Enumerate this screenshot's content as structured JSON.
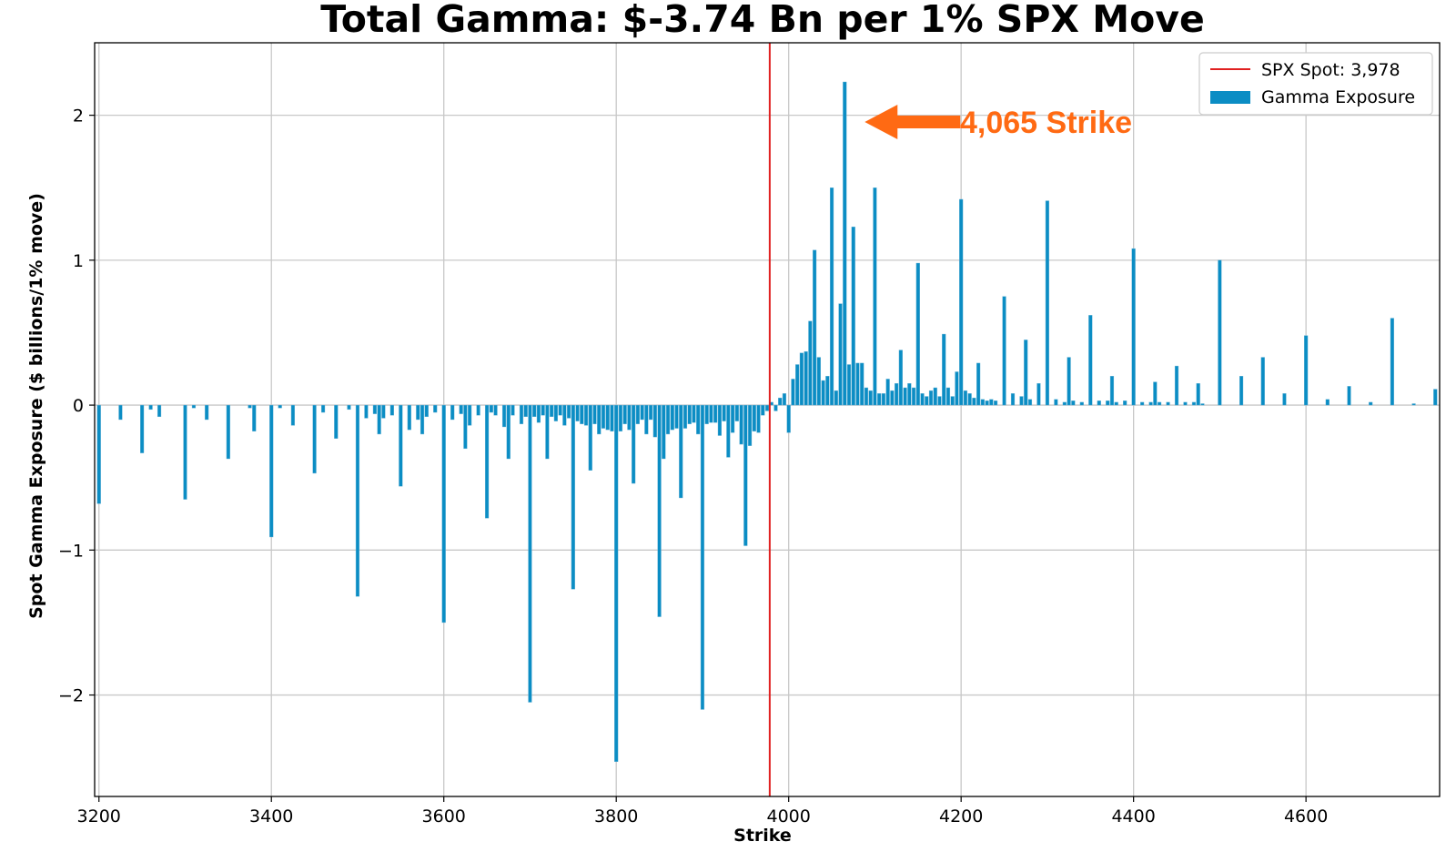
{
  "chart_data": {
    "type": "bar",
    "title": "Total Gamma: $-3.74 Bn per 1% SPX Move",
    "xlabel": "Strike",
    "ylabel": "Spot Gamma Exposure ($ billions/1% move)",
    "xlim": [
      3195,
      4755
    ],
    "ylim": [
      -2.7,
      2.5
    ],
    "grid": true,
    "legend_position": "top-right",
    "x_ticks": [
      3200,
      3400,
      3600,
      3800,
      4000,
      4200,
      4400,
      4600
    ],
    "x_tick_labels": [
      "3200",
      "3400",
      "3600",
      "3800",
      "4000",
      "4200",
      "4400",
      "4600"
    ],
    "y_ticks": [
      -2,
      -1,
      0,
      1,
      2
    ],
    "y_tick_labels": [
      "−2",
      "−1",
      "0",
      "1",
      "2"
    ],
    "bar_color": "#0b8dc4",
    "bar_width": 4,
    "series": [
      {
        "name": "Gamma Exposure",
        "x": [
          3200,
          3225,
          3250,
          3260,
          3270,
          3300,
          3310,
          3325,
          3350,
          3375,
          3380,
          3400,
          3410,
          3425,
          3450,
          3460,
          3475,
          3490,
          3500,
          3510,
          3520,
          3525,
          3530,
          3540,
          3550,
          3560,
          3570,
          3575,
          3580,
          3590,
          3600,
          3610,
          3620,
          3625,
          3630,
          3640,
          3650,
          3655,
          3660,
          3670,
          3675,
          3680,
          3690,
          3695,
          3700,
          3705,
          3710,
          3715,
          3720,
          3725,
          3730,
          3735,
          3740,
          3745,
          3750,
          3755,
          3760,
          3765,
          3770,
          3775,
          3780,
          3785,
          3790,
          3795,
          3800,
          3805,
          3810,
          3815,
          3820,
          3825,
          3830,
          3835,
          3840,
          3845,
          3850,
          3855,
          3860,
          3865,
          3870,
          3875,
          3880,
          3885,
          3890,
          3895,
          3900,
          3905,
          3910,
          3915,
          3920,
          3925,
          3930,
          3935,
          3940,
          3945,
          3950,
          3955,
          3960,
          3965,
          3970,
          3975,
          3980,
          3985,
          3990,
          3995,
          4000,
          4005,
          4010,
          4015,
          4020,
          4025,
          4030,
          4035,
          4040,
          4045,
          4050,
          4055,
          4060,
          4065,
          4070,
          4075,
          4080,
          4085,
          4090,
          4095,
          4100,
          4105,
          4110,
          4115,
          4120,
          4125,
          4130,
          4135,
          4140,
          4145,
          4150,
          4155,
          4160,
          4165,
          4170,
          4175,
          4180,
          4185,
          4190,
          4195,
          4200,
          4205,
          4210,
          4215,
          4220,
          4225,
          4230,
          4235,
          4240,
          4250,
          4260,
          4270,
          4275,
          4280,
          4290,
          4300,
          4310,
          4320,
          4325,
          4330,
          4340,
          4350,
          4360,
          4370,
          4375,
          4380,
          4390,
          4400,
          4410,
          4420,
          4425,
          4430,
          4440,
          4450,
          4460,
          4470,
          4475,
          4480,
          4500,
          4525,
          4550,
          4575,
          4600,
          4625,
          4650,
          4675,
          4700,
          4725,
          4750
        ],
        "values": [
          -0.68,
          -0.1,
          -0.33,
          -0.03,
          -0.08,
          -0.65,
          -0.02,
          -0.1,
          -0.37,
          -0.02,
          -0.18,
          -0.91,
          -0.02,
          -0.14,
          -0.47,
          -0.05,
          -0.23,
          -0.03,
          -1.32,
          -0.09,
          -0.06,
          -0.2,
          -0.09,
          -0.07,
          -0.56,
          -0.17,
          -0.1,
          -0.2,
          -0.08,
          -0.05,
          -1.5,
          -0.1,
          -0.06,
          -0.3,
          -0.14,
          -0.07,
          -0.78,
          -0.05,
          -0.07,
          -0.15,
          -0.37,
          -0.07,
          -0.13,
          -0.08,
          -2.05,
          -0.08,
          -0.12,
          -0.07,
          -0.37,
          -0.08,
          -0.11,
          -0.07,
          -0.14,
          -0.09,
          -1.27,
          -0.11,
          -0.13,
          -0.14,
          -0.45,
          -0.13,
          -0.2,
          -0.16,
          -0.17,
          -0.18,
          -2.46,
          -0.18,
          -0.13,
          -0.17,
          -0.54,
          -0.13,
          -0.1,
          -0.2,
          -0.1,
          -0.22,
          -1.46,
          -0.37,
          -0.2,
          -0.17,
          -0.16,
          -0.64,
          -0.16,
          -0.13,
          -0.12,
          -0.2,
          -2.1,
          -0.13,
          -0.12,
          -0.12,
          -0.21,
          -0.11,
          -0.36,
          -0.19,
          -0.11,
          -0.27,
          -0.97,
          -0.28,
          -0.18,
          -0.19,
          -0.07,
          -0.04,
          0.02,
          -0.04,
          0.05,
          0.08,
          -0.19,
          0.18,
          0.28,
          0.36,
          0.37,
          0.58,
          1.07,
          0.33,
          0.17,
          0.2,
          1.5,
          0.1,
          0.7,
          2.23,
          0.28,
          1.23,
          0.29,
          0.29,
          0.12,
          0.1,
          1.5,
          0.08,
          0.08,
          0.18,
          0.1,
          0.15,
          0.38,
          0.12,
          0.15,
          0.12,
          0.98,
          0.08,
          0.06,
          0.1,
          0.12,
          0.06,
          0.49,
          0.12,
          0.06,
          0.23,
          1.42,
          0.1,
          0.08,
          0.05,
          0.29,
          0.04,
          0.03,
          0.04,
          0.03,
          0.75,
          0.08,
          0.06,
          0.45,
          0.04,
          0.15,
          1.41,
          0.04,
          0.02,
          0.33,
          0.03,
          0.02,
          0.62,
          0.03,
          0.03,
          0.2,
          0.02,
          0.03,
          1.08,
          0.02,
          0.02,
          0.16,
          0.02,
          0.02,
          0.27,
          0.02,
          0.02,
          0.15,
          0.01,
          1.0,
          0.2,
          0.33,
          0.08,
          0.48,
          0.04,
          0.13,
          0.02,
          0.6,
          0.01,
          0.11
        ]
      }
    ],
    "spot": {
      "label": "SPX Spot: 3,978",
      "value": 3978,
      "color": "#e02020"
    },
    "annotation": {
      "text": "4,065 Strike",
      "points_to_strike": 4065,
      "color": "#ff6a13"
    },
    "legend": [
      {
        "label": "SPX Spot: 3,978",
        "kind": "line",
        "color": "#e02020"
      },
      {
        "label": "Gamma Exposure",
        "kind": "bar",
        "color": "#0b8dc4"
      }
    ]
  }
}
